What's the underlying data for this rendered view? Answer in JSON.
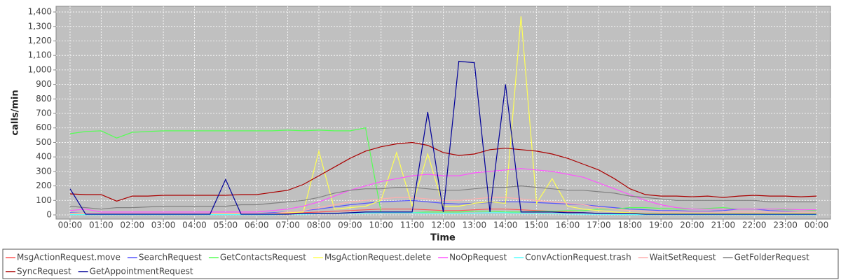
{
  "chart_data": {
    "type": "line",
    "x_label": "Time",
    "y_label": "calls/min",
    "x": [
      0,
      0.5,
      1,
      1.5,
      2,
      2.5,
      3,
      3.5,
      4,
      4.5,
      5,
      5.5,
      6,
      6.5,
      7,
      7.5,
      8,
      8.5,
      9,
      9.5,
      10,
      10.5,
      11,
      11.5,
      12,
      12.5,
      13,
      13.5,
      14,
      14.5,
      15,
      15.5,
      16,
      16.5,
      17,
      17.5,
      18,
      18.5,
      19,
      19.5,
      20,
      20.5,
      21,
      21.5,
      22,
      22.5,
      23,
      23.5,
      24
    ],
    "xlim": [
      -0.45,
      24.45
    ],
    "xticks": [
      {
        "value": 0,
        "label": "00:00"
      },
      {
        "value": 1,
        "label": "01:00"
      },
      {
        "value": 2,
        "label": "02:00"
      },
      {
        "value": 3,
        "label": "03:00"
      },
      {
        "value": 4,
        "label": "04:00"
      },
      {
        "value": 5,
        "label": "05:00"
      },
      {
        "value": 6,
        "label": "06:00"
      },
      {
        "value": 7,
        "label": "07:00"
      },
      {
        "value": 8,
        "label": "08:00"
      },
      {
        "value": 9,
        "label": "09:00"
      },
      {
        "value": 10,
        "label": "10:00"
      },
      {
        "value": 11,
        "label": "11:00"
      },
      {
        "value": 12,
        "label": "12:00"
      },
      {
        "value": 13,
        "label": "13:00"
      },
      {
        "value": 14,
        "label": "14:00"
      },
      {
        "value": 15,
        "label": "15:00"
      },
      {
        "value": 16,
        "label": "16:00"
      },
      {
        "value": 17,
        "label": "17:00"
      },
      {
        "value": 18,
        "label": "18:00"
      },
      {
        "value": 19,
        "label": "19:00"
      },
      {
        "value": 20,
        "label": "20:00"
      },
      {
        "value": 21,
        "label": "21:00"
      },
      {
        "value": 22,
        "label": "22:00"
      },
      {
        "value": 23,
        "label": "23:00"
      },
      {
        "value": 24,
        "label": "00:00"
      }
    ],
    "ylim": [
      -29,
      1439
    ],
    "yticks": [
      0,
      100,
      200,
      300,
      400,
      500,
      600,
      700,
      800,
      900,
      {
        "value": 1000,
        "label": "1,000"
      },
      {
        "value": 1100,
        "label": "1,100"
      },
      {
        "value": 1200,
        "label": "1,200"
      },
      {
        "value": 1300,
        "label": "1,300"
      },
      {
        "value": 1400,
        "label": "1,400"
      }
    ],
    "grid": true,
    "legend": "bottom",
    "series": [
      {
        "name": "MsgActionRequest.move",
        "color": "#ff5555",
        "values": [
          5,
          5,
          5,
          5,
          5,
          5,
          5,
          5,
          5,
          5,
          5,
          5,
          5,
          5,
          10,
          15,
          20,
          25,
          30,
          35,
          40,
          40,
          40,
          35,
          30,
          30,
          35,
          40,
          40,
          35,
          30,
          25,
          20,
          15,
          10,
          10,
          10,
          5,
          5,
          5,
          5,
          5,
          5,
          5,
          5,
          5,
          5,
          5,
          5
        ]
      },
      {
        "name": "SearchRequest",
        "color": "#5555ff",
        "values": [
          15,
          10,
          10,
          10,
          10,
          10,
          10,
          10,
          10,
          10,
          10,
          10,
          10,
          15,
          20,
          30,
          40,
          55,
          70,
          80,
          90,
          95,
          100,
          90,
          80,
          75,
          80,
          85,
          90,
          90,
          85,
          80,
          75,
          70,
          60,
          50,
          40,
          35,
          30,
          30,
          25,
          25,
          30,
          40,
          40,
          30,
          25,
          20,
          20
        ]
      },
      {
        "name": "GetContactsRequest",
        "color": "#55ff55",
        "values": [
          560,
          575,
          580,
          530,
          570,
          575,
          580,
          580,
          580,
          580,
          580,
          580,
          580,
          580,
          585,
          580,
          585,
          580,
          580,
          600,
          20,
          15,
          15,
          20,
          20,
          20,
          25,
          25,
          20,
          20,
          25,
          25,
          30,
          30,
          40,
          40,
          50,
          50,
          45,
          40,
          40,
          45,
          50,
          40,
          40,
          40,
          35,
          35,
          30
        ]
      },
      {
        "name": "MsgActionRequest.delete",
        "color": "#ffff55",
        "values": [
          5,
          5,
          5,
          5,
          5,
          5,
          5,
          5,
          5,
          5,
          5,
          5,
          5,
          10,
          15,
          20,
          440,
          40,
          50,
          60,
          100,
          430,
          60,
          420,
          60,
          60,
          80,
          90,
          80,
          1370,
          80,
          250,
          60,
          40,
          30,
          20,
          15,
          10,
          10,
          10,
          10,
          10,
          10,
          10,
          10,
          10,
          10,
          10,
          10
        ]
      },
      {
        "name": "NoOpRequest",
        "color": "#ff55ff",
        "values": [
          30,
          40,
          20,
          20,
          20,
          20,
          20,
          20,
          20,
          20,
          20,
          20,
          20,
          30,
          40,
          60,
          90,
          130,
          170,
          200,
          230,
          250,
          270,
          280,
          270,
          270,
          290,
          300,
          310,
          320,
          310,
          300,
          280,
          260,
          220,
          180,
          140,
          100,
          70,
          50,
          40,
          40,
          40,
          40,
          40,
          40,
          40,
          35,
          35
        ]
      },
      {
        "name": "ConvActionRequest.trash",
        "color": "#55ffff",
        "values": [
          2,
          2,
          2,
          2,
          2,
          2,
          2,
          2,
          2,
          2,
          2,
          2,
          2,
          2,
          5,
          5,
          8,
          10,
          12,
          12,
          15,
          15,
          15,
          12,
          10,
          10,
          12,
          15,
          15,
          12,
          10,
          8,
          6,
          5,
          4,
          3,
          2,
          2,
          2,
          2,
          2,
          2,
          2,
          2,
          2,
          2,
          2,
          2,
          2
        ]
      },
      {
        "name": "WaitSetRequest",
        "color": "#ffafaf",
        "values": [
          10,
          10,
          10,
          10,
          10,
          10,
          10,
          10,
          10,
          10,
          10,
          10,
          10,
          10,
          20,
          30,
          50,
          70,
          90,
          100,
          110,
          120,
          120,
          110,
          100,
          100,
          110,
          120,
          120,
          110,
          100,
          90,
          80,
          70,
          50,
          40,
          30,
          25,
          20,
          20,
          20,
          20,
          20,
          20,
          20,
          20,
          20,
          20,
          20
        ]
      },
      {
        "name": "GetFolderRequest",
        "color": "#808080",
        "values": [
          60,
          50,
          40,
          50,
          50,
          55,
          60,
          60,
          60,
          60,
          60,
          70,
          70,
          80,
          90,
          100,
          120,
          150,
          170,
          180,
          180,
          190,
          190,
          180,
          170,
          170,
          180,
          190,
          190,
          200,
          190,
          180,
          170,
          170,
          160,
          150,
          130,
          120,
          110,
          100,
          100,
          100,
          100,
          100,
          100,
          90,
          90,
          90,
          90
        ]
      },
      {
        "name": "SyncRequest",
        "color": "#aa0000",
        "values": [
          145,
          140,
          140,
          95,
          130,
          130,
          135,
          135,
          135,
          135,
          135,
          140,
          140,
          155,
          170,
          210,
          270,
          330,
          390,
          440,
          470,
          490,
          500,
          480,
          430,
          410,
          420,
          450,
          460,
          450,
          440,
          420,
          390,
          350,
          310,
          250,
          180,
          140,
          130,
          130,
          125,
          130,
          120,
          130,
          135,
          130,
          130,
          125,
          130
        ]
      },
      {
        "name": "GetAppointmentRequest",
        "color": "#000099",
        "values": [
          180,
          5,
          5,
          5,
          5,
          5,
          5,
          5,
          5,
          5,
          245,
          5,
          5,
          5,
          5,
          10,
          10,
          10,
          15,
          20,
          20,
          20,
          20,
          710,
          20,
          1060,
          1050,
          20,
          900,
          20,
          20,
          20,
          15,
          15,
          10,
          10,
          10,
          5,
          5,
          5,
          5,
          5,
          5,
          5,
          5,
          5,
          5,
          5,
          5
        ]
      }
    ]
  }
}
